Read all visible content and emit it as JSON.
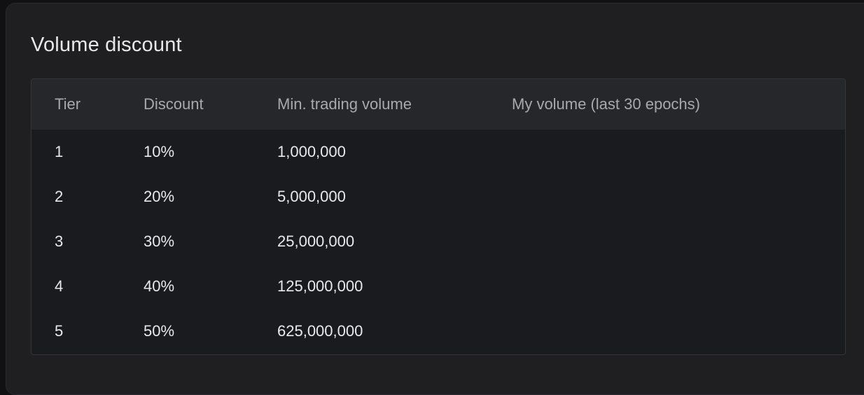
{
  "title": "Volume discount",
  "columns": [
    "Tier",
    "Discount",
    "Min. trading volume",
    "My volume (last 30 epochs)"
  ],
  "rows": [
    {
      "tier": "1",
      "discount": "10%",
      "min_volume": "1,000,000",
      "my_volume": ""
    },
    {
      "tier": "2",
      "discount": "20%",
      "min_volume": "5,000,000",
      "my_volume": ""
    },
    {
      "tier": "3",
      "discount": "30%",
      "min_volume": "25,000,000",
      "my_volume": ""
    },
    {
      "tier": "4",
      "discount": "40%",
      "min_volume": "125,000,000",
      "my_volume": ""
    },
    {
      "tier": "5",
      "discount": "50%",
      "min_volume": "625,000,000",
      "my_volume": ""
    }
  ]
}
